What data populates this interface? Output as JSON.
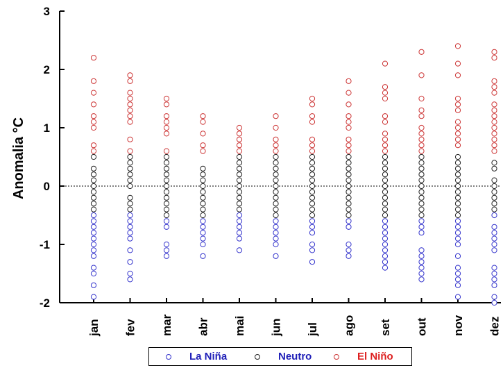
{
  "chart_data": {
    "type": "scatter",
    "title": "",
    "xlabel": "",
    "ylabel": "Anomalia °C",
    "ylim": [
      -2,
      3
    ],
    "yticks": [
      "3",
      "2",
      "1",
      "0",
      "-1",
      "-2"
    ],
    "ytick_values": [
      3,
      2,
      1,
      0,
      -1,
      -2
    ],
    "zero_line": "dotted",
    "grid": false,
    "legend_position": "bottom",
    "categories": [
      "jan",
      "fev",
      "mar",
      "abr",
      "mai",
      "jun",
      "jul",
      "ago",
      "set",
      "out",
      "nov",
      "dez"
    ],
    "series": [
      {
        "name": "La Niña",
        "color": "#3333cc",
        "values": [
          [
            -0.5,
            -0.6,
            -0.7,
            -0.8,
            -0.9,
            -1.0,
            -1.1,
            -1.2,
            -1.4,
            -1.5,
            -1.7,
            -1.9
          ],
          [
            -0.5,
            -0.6,
            -0.7,
            -0.8,
            -0.9,
            -1.1,
            -1.3,
            -1.5,
            -1.6
          ],
          [
            -0.6,
            -0.7,
            -1.0,
            -1.1,
            -1.2
          ],
          [
            -0.6,
            -0.7,
            -0.8,
            -0.9,
            -1.0,
            -1.2
          ],
          [
            -0.5,
            -0.6,
            -0.7,
            -0.8,
            -0.9,
            -1.1
          ],
          [
            -0.6,
            -0.7,
            -0.8,
            -0.9,
            -1.0,
            -1.2
          ],
          [
            -0.6,
            -0.7,
            -0.8,
            -1.0,
            -1.1,
            -1.3
          ],
          [
            -0.6,
            -0.7,
            -1.0,
            -1.1,
            -1.2
          ],
          [
            -0.6,
            -0.7,
            -0.8,
            -0.9,
            -1.0,
            -1.1,
            -1.2,
            -1.3,
            -1.4
          ],
          [
            -0.6,
            -0.7,
            -0.8,
            -1.1,
            -1.2,
            -1.3,
            -1.4,
            -1.5,
            -1.6
          ],
          [
            -0.6,
            -0.7,
            -0.8,
            -0.9,
            -1.0,
            -1.2,
            -1.4,
            -1.5,
            -1.6,
            -1.7,
            -1.9
          ],
          [
            -0.5,
            -0.7,
            -0.8,
            -0.9,
            -1.0,
            -1.1,
            -1.4,
            -1.5,
            -1.6,
            -1.7,
            -1.9,
            -2.0
          ]
        ]
      },
      {
        "name": "Neutro",
        "color": "#222222",
        "values": [
          [
            0.5,
            0.3,
            0.2,
            0.1,
            0.0,
            -0.1,
            -0.2,
            -0.3,
            -0.4
          ],
          [
            0.5,
            0.4,
            0.3,
            0.2,
            0.1,
            0.0,
            -0.2,
            -0.3,
            -0.4
          ],
          [
            0.5,
            0.4,
            0.3,
            0.2,
            0.1,
            0.0,
            -0.1,
            -0.2,
            -0.3,
            -0.4,
            -0.5
          ],
          [
            0.3,
            0.2,
            0.1,
            0.0,
            -0.1,
            -0.2,
            -0.3,
            -0.4,
            -0.5
          ],
          [
            0.5,
            0.4,
            0.3,
            0.2,
            0.1,
            0.0,
            -0.1,
            -0.2,
            -0.3,
            -0.4
          ],
          [
            0.5,
            0.4,
            0.3,
            0.2,
            0.1,
            0.0,
            -0.1,
            -0.2,
            -0.3,
            -0.4,
            -0.5
          ],
          [
            0.5,
            0.4,
            0.3,
            0.2,
            0.1,
            0.0,
            -0.1,
            -0.2,
            -0.3,
            -0.4,
            -0.5
          ],
          [
            0.5,
            0.4,
            0.3,
            0.2,
            0.1,
            0.0,
            -0.1,
            -0.2,
            -0.3,
            -0.4,
            -0.5
          ],
          [
            0.5,
            0.4,
            0.3,
            0.2,
            0.1,
            0.0,
            -0.1,
            -0.2,
            -0.3,
            -0.4,
            -0.5
          ],
          [
            0.5,
            0.4,
            0.3,
            0.2,
            0.1,
            0.0,
            -0.1,
            -0.2,
            -0.3,
            -0.4,
            -0.5
          ],
          [
            0.5,
            0.4,
            0.3,
            0.2,
            0.1,
            0.0,
            -0.1,
            -0.2,
            -0.3,
            -0.4,
            -0.5
          ],
          [
            0.4,
            0.3,
            0.1,
            0.0,
            -0.1,
            -0.2,
            -0.3,
            -0.4
          ]
        ]
      },
      {
        "name": "El Niño",
        "color": "#cc3333",
        "values": [
          [
            2.2,
            1.8,
            1.6,
            1.4,
            1.2,
            1.1,
            1.0,
            0.7,
            0.6
          ],
          [
            1.9,
            1.8,
            1.6,
            1.5,
            1.4,
            1.3,
            1.2,
            1.1,
            0.8,
            0.6
          ],
          [
            1.5,
            1.4,
            1.2,
            1.1,
            1.0,
            0.9,
            0.6
          ],
          [
            1.2,
            1.1,
            0.9,
            0.7,
            0.6
          ],
          [
            1.0,
            0.9,
            0.8,
            0.7,
            0.6
          ],
          [
            1.2,
            1.0,
            0.8,
            0.7,
            0.6
          ],
          [
            1.5,
            1.4,
            1.2,
            1.1,
            0.8,
            0.7,
            0.6
          ],
          [
            1.8,
            1.6,
            1.4,
            1.2,
            1.1,
            1.0,
            0.8,
            0.7,
            0.6
          ],
          [
            2.1,
            1.7,
            1.6,
            1.5,
            1.2,
            1.1,
            0.9,
            0.8,
            0.7,
            0.6
          ],
          [
            2.3,
            1.9,
            1.5,
            1.3,
            1.2,
            1.0,
            0.9,
            0.8,
            0.7,
            0.6
          ],
          [
            2.4,
            2.1,
            1.9,
            1.5,
            1.4,
            1.3,
            1.1,
            1.0,
            0.9,
            0.8,
            0.7
          ],
          [
            2.3,
            2.2,
            1.8,
            1.7,
            1.6,
            1.4,
            1.3,
            1.2,
            1.1,
            1.0,
            0.9,
            0.8,
            0.7,
            0.6
          ]
        ]
      }
    ]
  }
}
